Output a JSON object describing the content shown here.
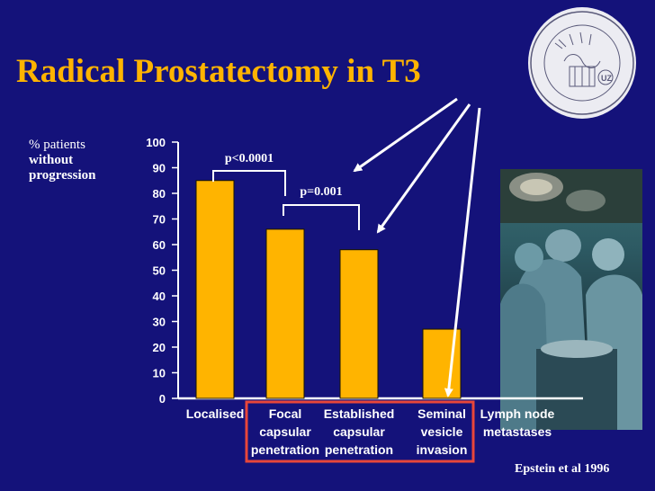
{
  "slide": {
    "title": "Radical Prostatectomy in T3",
    "citation": "Epstein et al 1996"
  },
  "colors": {
    "background": "#14127a",
    "title": "#ffb400",
    "bar": "#ffb400",
    "arrow": "#ffffff",
    "highlight_box": "#e8463a"
  },
  "chart_data": {
    "type": "bar",
    "ylabel_lines": [
      "% patients",
      "without",
      "progression"
    ],
    "categories": [
      [
        "Localised"
      ],
      [
        "Focal",
        "capsular",
        "penetration"
      ],
      [
        "Established",
        "capsular",
        "penetration"
      ],
      [
        "Seminal",
        "vesicle",
        "invasion"
      ],
      [
        "Lymph node",
        "metastases"
      ]
    ],
    "values": [
      85,
      66,
      58,
      27,
      0
    ],
    "ylim": [
      0,
      100
    ],
    "yticks": [
      0,
      10,
      20,
      30,
      40,
      50,
      60,
      70,
      80,
      90,
      100
    ],
    "grid": false,
    "annotations": [
      {
        "text": "p<0.0001",
        "between": [
          0,
          1
        ]
      },
      {
        "text": "p=0.001",
        "between": [
          1,
          2
        ]
      }
    ],
    "highlighted_categories": [
      1,
      2,
      3
    ]
  },
  "images": {
    "seal": "university-seal",
    "photo": "surgery-photo"
  }
}
